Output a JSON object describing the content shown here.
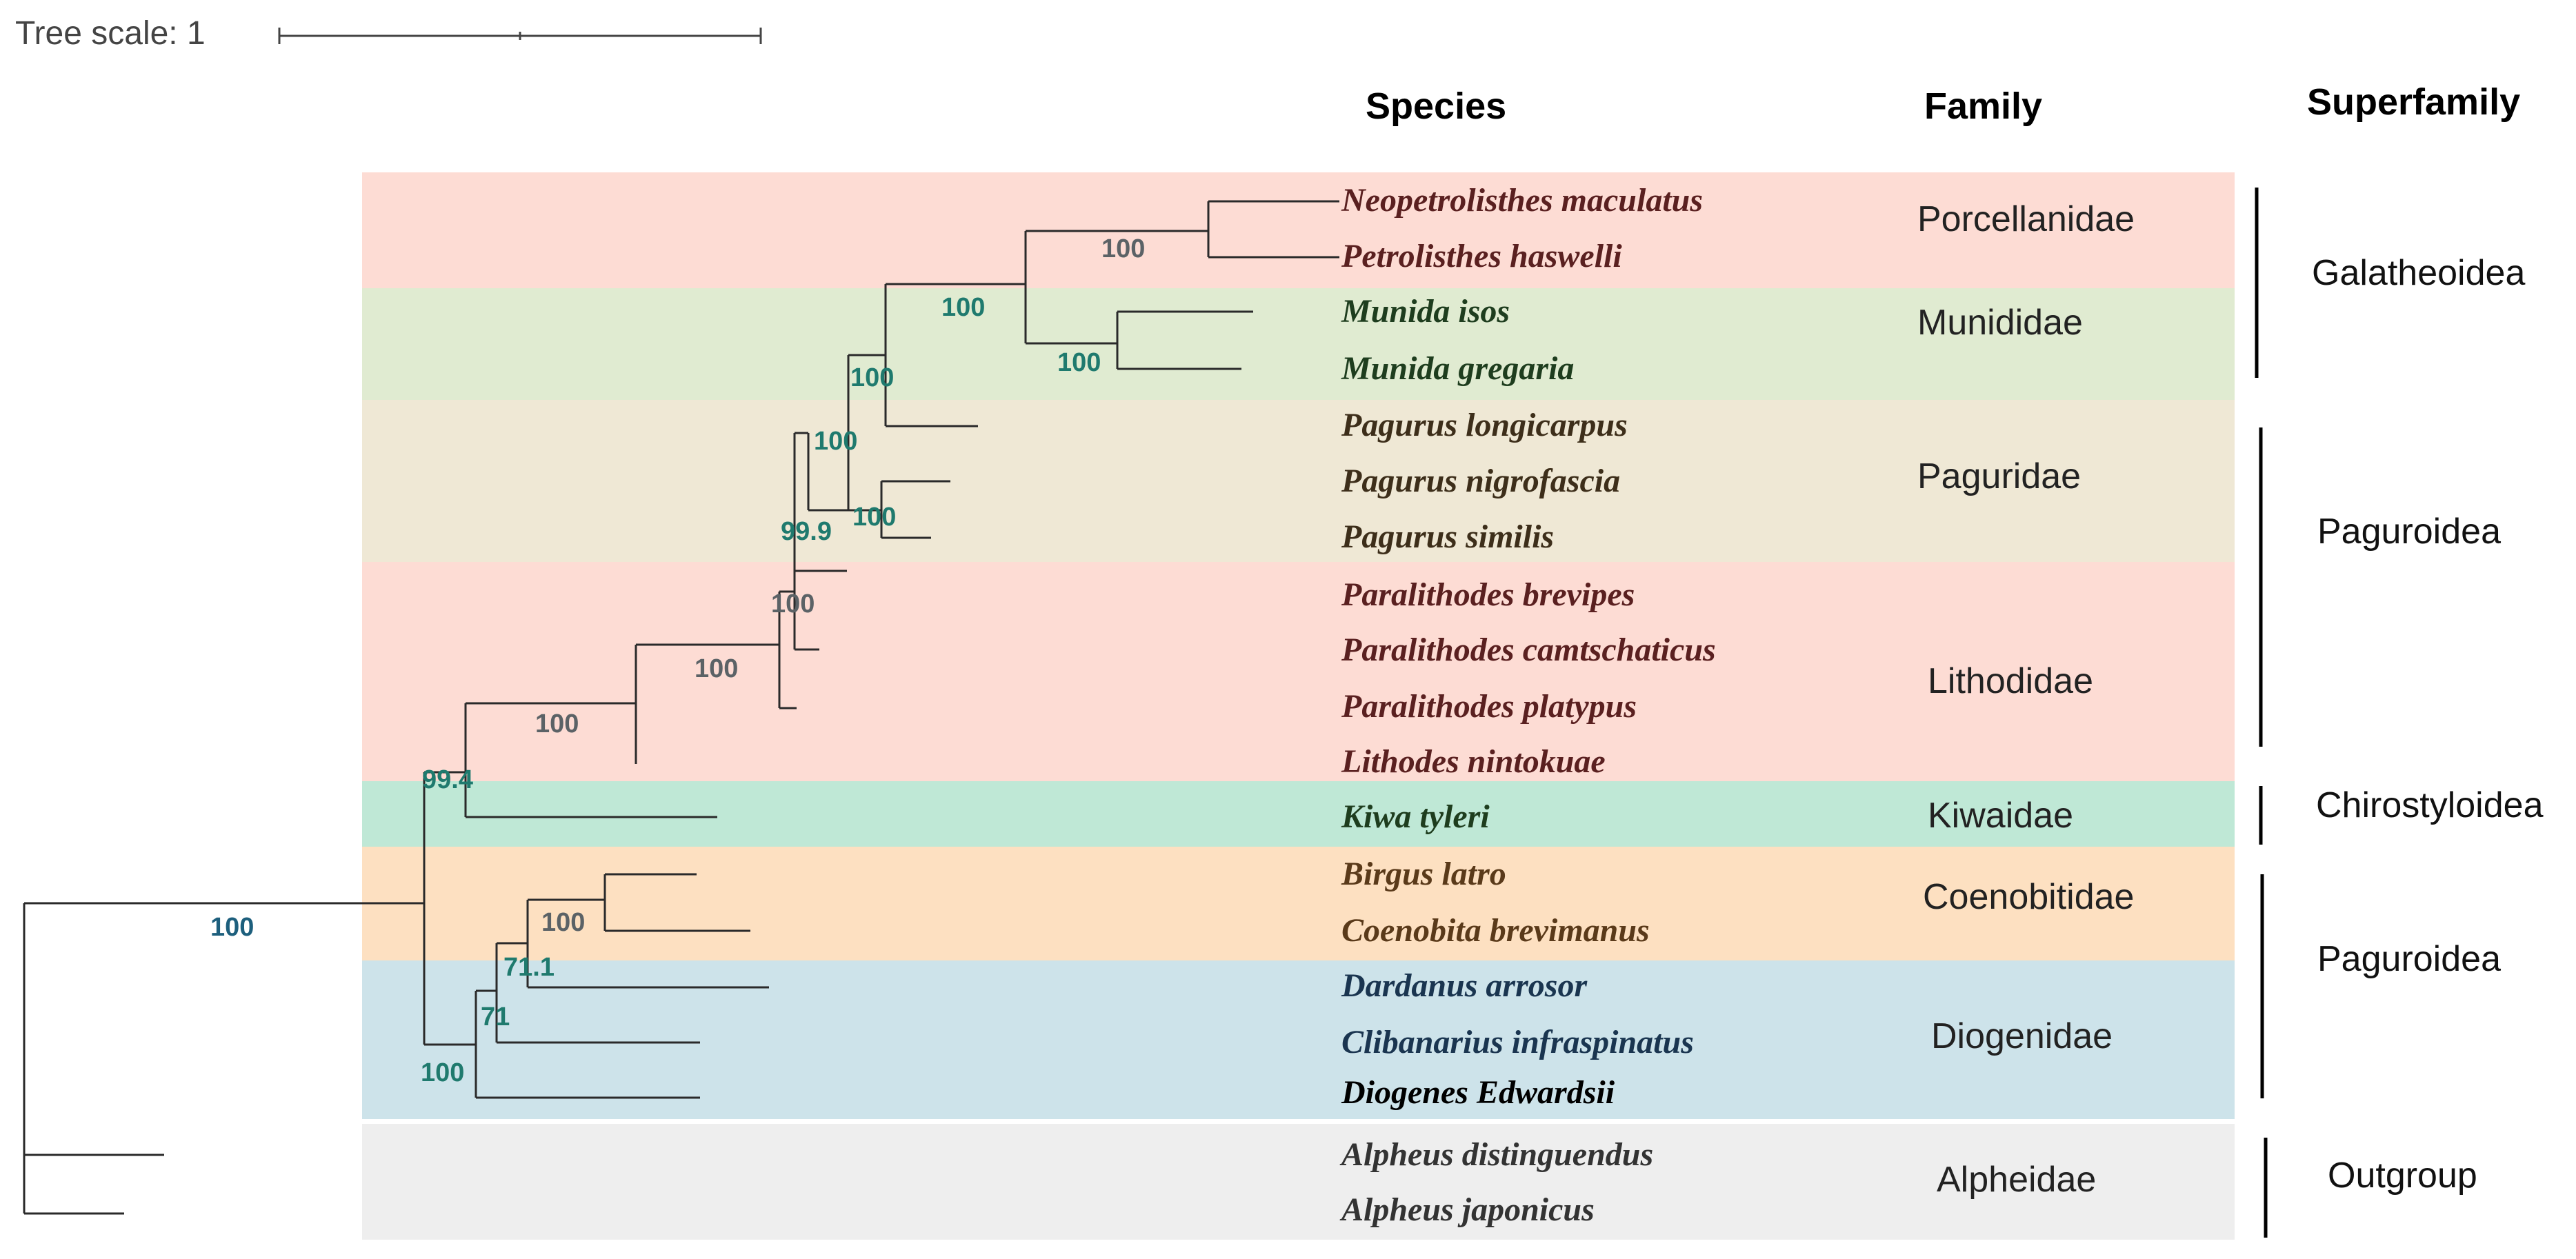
{
  "tree_scale": {
    "label": "Tree scale: 1"
  },
  "headers": {
    "species": "Species",
    "family": "Family",
    "superfamily": "Superfamily"
  },
  "colors": {
    "porcellanidae": "#fddcd4",
    "munididae": "#e0ebd1",
    "paguridae": "#efe8d5",
    "lithodidae": "#fddcd4",
    "kiwaidae": "#bfe8d6",
    "coenobitidae": "#fde0c1",
    "diogenidae": "#cde3ea",
    "alpheidae": "#eeeeee",
    "support_teal": "#1f7a6e",
    "support_gray": "#5b6266",
    "support_blue": "#1d5f7d"
  },
  "species": [
    {
      "name": "Neopetrolisthes maculatus",
      "color": "#5a2020"
    },
    {
      "name": "Petrolisthes haswelli",
      "color": "#5a2020"
    },
    {
      "name": "Munida isos",
      "color": "#1e3d1e"
    },
    {
      "name": "Munida gregaria",
      "color": "#1e3d1e"
    },
    {
      "name": "Pagurus longicarpus",
      "color": "#3d2e1a"
    },
    {
      "name": "Pagurus nigrofascia",
      "color": "#3d2e1a"
    },
    {
      "name": "Pagurus similis",
      "color": "#3d2e1a"
    },
    {
      "name": "Paralithodes brevipes",
      "color": "#5a2020"
    },
    {
      "name": "Paralithodes camtschaticus",
      "color": "#5a2020"
    },
    {
      "name": "Paralithodes platypus",
      "color": "#5a2020"
    },
    {
      "name": "Lithodes nintokuae",
      "color": "#5a2020"
    },
    {
      "name": "Kiwa tyleri",
      "color": "#1e3d1e"
    },
    {
      "name": "Birgus latro",
      "color": "#5a3a1a"
    },
    {
      "name": "Coenobita brevimanus",
      "color": "#5a3a1a"
    },
    {
      "name": "Dardanus arrosor",
      "color": "#1a3550"
    },
    {
      "name": "Clibanarius infraspinatus",
      "color": "#1a3550"
    },
    {
      "name": "Diogenes Edwardsii",
      "color": "#000000"
    },
    {
      "name": "Alpheus distinguendus",
      "color": "#333333"
    },
    {
      "name": "Alpheus japonicus",
      "color": "#333333"
    }
  ],
  "families": [
    {
      "name": "Porcellanidae"
    },
    {
      "name": "Munididae"
    },
    {
      "name": "Paguridae"
    },
    {
      "name": "Lithodidae"
    },
    {
      "name": "Kiwaidae"
    },
    {
      "name": "Coenobitidae"
    },
    {
      "name": "Diogenidae"
    },
    {
      "name": "Alpheidae"
    }
  ],
  "superfamilies": [
    {
      "name": "Galatheoidea"
    },
    {
      "name": "Paguroidea"
    },
    {
      "name": "Chirostyloidea"
    },
    {
      "name": "Paguroidea"
    },
    {
      "name": "Outgroup"
    }
  ],
  "support_values": [
    {
      "value": "100",
      "tone": "gray"
    },
    {
      "value": "100",
      "tone": "teal"
    },
    {
      "value": "100",
      "tone": "teal"
    },
    {
      "value": "100",
      "tone": "teal"
    },
    {
      "value": "100",
      "tone": "teal"
    },
    {
      "value": "100",
      "tone": "teal"
    },
    {
      "value": "99.9",
      "tone": "teal"
    },
    {
      "value": "100",
      "tone": "gray"
    },
    {
      "value": "100",
      "tone": "gray"
    },
    {
      "value": "100",
      "tone": "gray"
    },
    {
      "value": "99.4",
      "tone": "teal"
    },
    {
      "value": "100",
      "tone": "gray"
    },
    {
      "value": "71.1",
      "tone": "teal"
    },
    {
      "value": "71",
      "tone": "teal"
    },
    {
      "value": "100",
      "tone": "teal"
    },
    {
      "value": "100",
      "tone": "blue"
    }
  ]
}
